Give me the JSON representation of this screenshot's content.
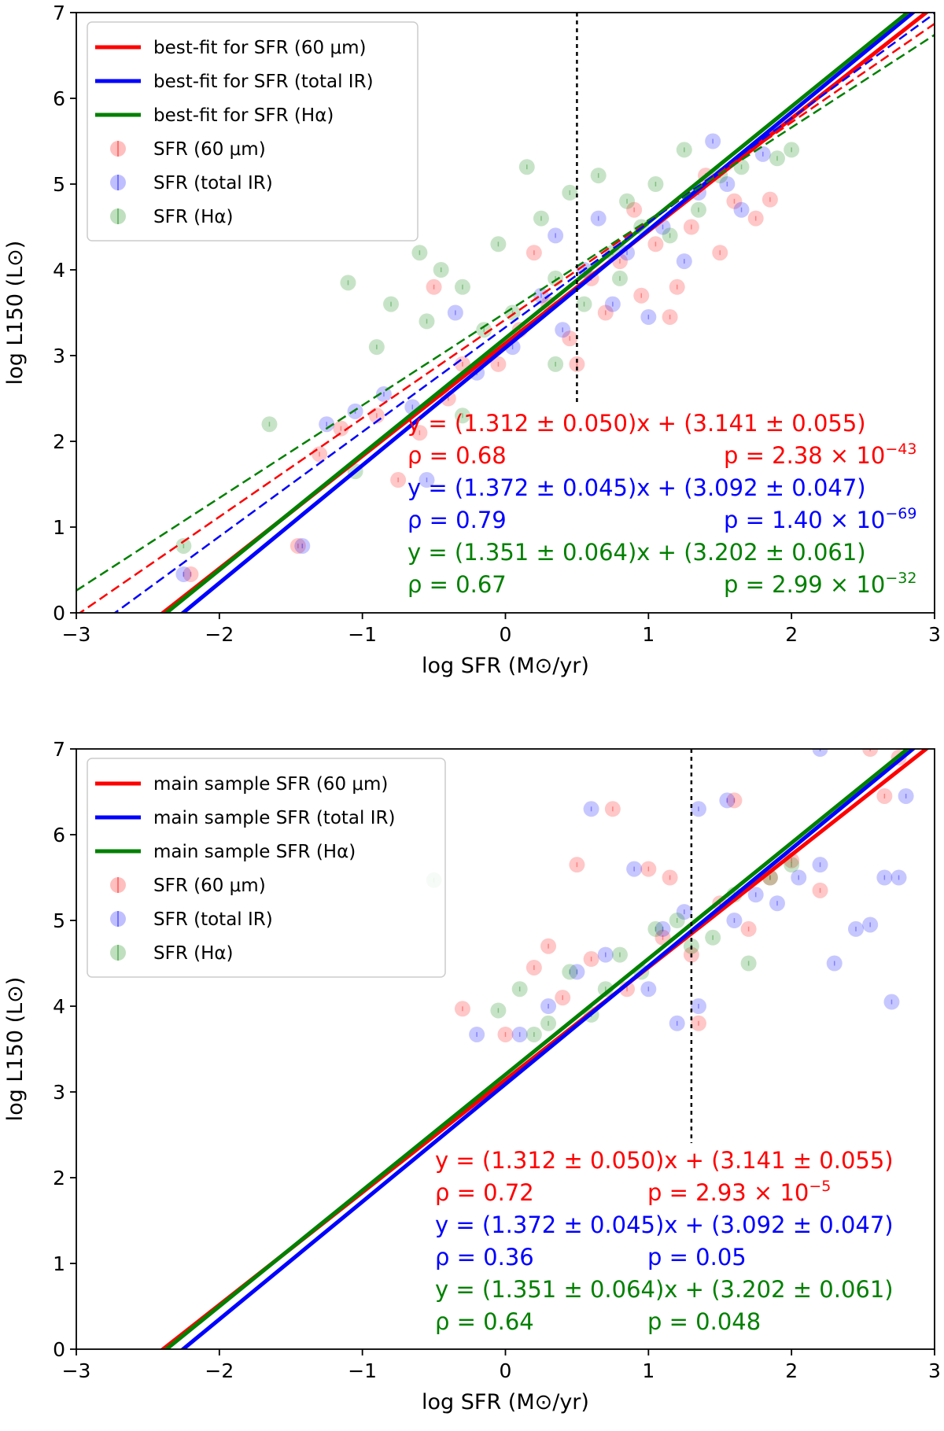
{
  "chart_data": [
    {
      "type": "scatter",
      "xlabel": "log SFR (M⊙/yr)",
      "ylabel": "log L150 (L⊙)",
      "xlim": [
        -3,
        3
      ],
      "ylim": [
        0,
        7
      ],
      "xticks": [
        "−3",
        "−2",
        "−1",
        "0",
        "1",
        "2",
        "3"
      ],
      "yticks": [
        "0",
        "1",
        "2",
        "3",
        "4",
        "5",
        "6",
        "7"
      ],
      "grid": false,
      "legend_placement": "top-left",
      "colors": {
        "sfr60": "#ff0000",
        "sfrtir": "#0000ff",
        "sfrha": "#008000"
      },
      "vline_x": 0.5,
      "legend": [
        {
          "kind": "line",
          "label": "best-fit for SFR (60 μm)",
          "color": "#ff0000"
        },
        {
          "kind": "line",
          "label": "best-fit for SFR (total IR)",
          "color": "#0000ff"
        },
        {
          "kind": "line",
          "label": "best-fit for SFR (Hα)",
          "color": "#008000"
        },
        {
          "kind": "marker",
          "label": "SFR (60 μm)",
          "color": "#ff0000"
        },
        {
          "kind": "marker",
          "label": "SFR (total IR)",
          "color": "#0000ff"
        },
        {
          "kind": "marker",
          "label": "SFR (Hα)",
          "color": "#008000"
        }
      ],
      "fits": [
        {
          "color": "#ff0000",
          "slope": 1.312,
          "intercept": 3.141,
          "style": "solid"
        },
        {
          "color": "#0000ff",
          "slope": 1.372,
          "intercept": 3.092,
          "style": "solid"
        },
        {
          "color": "#008000",
          "slope": 1.351,
          "intercept": 3.202,
          "style": "solid"
        },
        {
          "color": "#ff0000",
          "slope": 1.15,
          "intercept": 3.42,
          "style": "dashed"
        },
        {
          "color": "#0000ff",
          "slope": 1.22,
          "intercept": 3.33,
          "style": "dashed"
        },
        {
          "color": "#008000",
          "slope": 1.08,
          "intercept": 3.5,
          "style": "dashed"
        }
      ],
      "annotations": [
        {
          "eq": "y = (1.312 ± 0.050)x + (3.141 ± 0.055)",
          "rho": "ρ = 0.68",
          "p": "p = 2.38 × 10",
          "pexp": "−43",
          "color": "#ff0000"
        },
        {
          "eq": "y = (1.372 ± 0.045)x + (3.092 ± 0.047)",
          "rho": "ρ = 0.79",
          "p": "p = 1.40 × 10",
          "pexp": "−69",
          "color": "#0000ff"
        },
        {
          "eq": "y = (1.351 ± 0.064)x + (3.202 ± 0.061)",
          "rho": "ρ = 0.67",
          "p": "p = 2.99 × 10",
          "pexp": "−32",
          "color": "#008000"
        }
      ],
      "series": [
        {
          "name": "SFR (60 μm)",
          "color": "#ff0000",
          "points": [
            [
              -2.2,
              0.45
            ],
            [
              -1.45,
              0.78
            ],
            [
              -1.3,
              1.85
            ],
            [
              -1.15,
              2.15
            ],
            [
              -0.9,
              2.3
            ],
            [
              -0.75,
              1.55
            ],
            [
              -0.6,
              2.1
            ],
            [
              -0.4,
              2.5
            ],
            [
              -0.3,
              2.9
            ],
            [
              -0.05,
              2.9
            ],
            [
              0.1,
              3.3
            ],
            [
              0.3,
              3.6
            ],
            [
              0.45,
              3.2
            ],
            [
              0.5,
              2.9
            ],
            [
              0.6,
              3.9
            ],
            [
              0.7,
              3.5
            ],
            [
              0.8,
              4.1
            ],
            [
              0.95,
              3.7
            ],
            [
              1.05,
              4.3
            ],
            [
              1.2,
              3.8
            ],
            [
              1.3,
              4.5
            ],
            [
              1.5,
              4.2
            ],
            [
              1.6,
              4.8
            ],
            [
              1.75,
              4.6
            ],
            [
              1.85,
              4.82
            ],
            [
              -0.5,
              3.8
            ],
            [
              0.2,
              4.2
            ],
            [
              0.9,
              4.7
            ],
            [
              1.4,
              5.1
            ],
            [
              1.15,
              3.45
            ]
          ]
        },
        {
          "name": "SFR (total IR)",
          "color": "#0000ff",
          "points": [
            [
              -2.25,
              0.45
            ],
            [
              -1.42,
              0.78
            ],
            [
              -1.25,
              2.2
            ],
            [
              -1.05,
              2.35
            ],
            [
              -0.85,
              2.55
            ],
            [
              -0.65,
              2.4
            ],
            [
              -0.55,
              1.55
            ],
            [
              -0.2,
              2.8
            ],
            [
              0.05,
              3.1
            ],
            [
              0.25,
              3.7
            ],
            [
              0.4,
              3.3
            ],
            [
              0.55,
              4.0
            ],
            [
              0.75,
              3.6
            ],
            [
              0.85,
              4.2
            ],
            [
              1.0,
              3.45
            ],
            [
              1.1,
              4.5
            ],
            [
              1.25,
              4.1
            ],
            [
              1.35,
              4.9
            ],
            [
              1.45,
              5.5
            ],
            [
              1.55,
              5.0
            ],
            [
              1.8,
              5.35
            ],
            [
              0.35,
              4.4
            ],
            [
              0.65,
              4.6
            ],
            [
              -0.35,
              3.5
            ],
            [
              1.65,
              4.7
            ]
          ]
        },
        {
          "name": "SFR (Hα)",
          "color": "#008000",
          "points": [
            [
              -1.65,
              2.2
            ],
            [
              -1.05,
              1.65
            ],
            [
              -1.1,
              3.85
            ],
            [
              -0.9,
              3.1
            ],
            [
              -0.8,
              3.6
            ],
            [
              -0.6,
              4.2
            ],
            [
              -0.55,
              3.4
            ],
            [
              -0.45,
              4.0
            ],
            [
              -0.3,
              3.8
            ],
            [
              -0.15,
              3.3
            ],
            [
              -0.05,
              4.3
            ],
            [
              0.05,
              3.5
            ],
            [
              0.15,
              5.2
            ],
            [
              0.25,
              4.6
            ],
            [
              0.35,
              3.9
            ],
            [
              0.45,
              4.9
            ],
            [
              0.55,
              3.6
            ],
            [
              0.65,
              5.1
            ],
            [
              0.75,
              4.2
            ],
            [
              0.85,
              4.8
            ],
            [
              0.95,
              4.5
            ],
            [
              1.05,
              5.0
            ],
            [
              1.15,
              4.4
            ],
            [
              1.25,
              5.4
            ],
            [
              1.35,
              4.7
            ],
            [
              1.5,
              5.1
            ],
            [
              1.65,
              5.2
            ],
            [
              1.9,
              5.3
            ],
            [
              2.0,
              5.4
            ],
            [
              -0.3,
              2.3
            ],
            [
              0.35,
              2.9
            ],
            [
              0.8,
              3.9
            ],
            [
              -2.25,
              0.78
            ]
          ]
        }
      ]
    },
    {
      "type": "scatter",
      "xlabel": "log SFR (M⊙/yr)",
      "ylabel": "log L150 (L⊙)",
      "xlim": [
        -3,
        3
      ],
      "ylim": [
        0,
        7
      ],
      "xticks": [
        "−3",
        "−2",
        "−1",
        "0",
        "1",
        "2",
        "3"
      ],
      "yticks": [
        "0",
        "1",
        "2",
        "3",
        "4",
        "5",
        "6",
        "7"
      ],
      "grid": false,
      "legend_placement": "top-left",
      "colors": {
        "sfr60": "#ff0000",
        "sfrtir": "#0000ff",
        "sfrha": "#008000"
      },
      "vline_x": 1.3,
      "legend": [
        {
          "kind": "line",
          "label": "main sample SFR (60 μm)",
          "color": "#ff0000"
        },
        {
          "kind": "line",
          "label": "main sample SFR (total IR)",
          "color": "#0000ff"
        },
        {
          "kind": "line",
          "label": "main sample SFR (Hα)",
          "color": "#008000"
        },
        {
          "kind": "marker",
          "label": "SFR (60 μm)",
          "color": "#ff0000"
        },
        {
          "kind": "marker",
          "label": "SFR (total IR)",
          "color": "#0000ff"
        },
        {
          "kind": "marker",
          "label": "SFR (Hα)",
          "color": "#008000"
        }
      ],
      "fits": [
        {
          "color": "#ff0000",
          "slope": 1.312,
          "intercept": 3.141,
          "style": "solid"
        },
        {
          "color": "#0000ff",
          "slope": 1.372,
          "intercept": 3.092,
          "style": "solid"
        },
        {
          "color": "#008000",
          "slope": 1.351,
          "intercept": 3.202,
          "style": "solid"
        }
      ],
      "annotations": [
        {
          "eq": "y = (1.312 ± 0.050)x + (3.141 ± 0.055)",
          "rho": "ρ = 0.72",
          "p": "p = 2.93 × 10",
          "pexp": "−5",
          "color": "#ff0000"
        },
        {
          "eq": "y = (1.372 ± 0.045)x + (3.092 ± 0.047)",
          "rho": "ρ = 0.36",
          "p": "p = 0.05",
          "pexp": "",
          "color": "#0000ff"
        },
        {
          "eq": "y = (1.351 ± 0.064)x + (3.202 ± 0.061)",
          "rho": "ρ = 0.64",
          "p": "p = 0.048",
          "pexp": "",
          "color": "#008000"
        }
      ],
      "series": [
        {
          "name": "SFR (60 μm)",
          "color": "#ff0000",
          "points": [
            [
              -0.3,
              3.97
            ],
            [
              0.0,
              3.67
            ],
            [
              0.2,
              4.45
            ],
            [
              0.4,
              4.1
            ],
            [
              0.5,
              5.65
            ],
            [
              0.6,
              4.55
            ],
            [
              0.75,
              6.3
            ],
            [
              0.85,
              4.2
            ],
            [
              1.0,
              5.6
            ],
            [
              1.1,
              4.8
            ],
            [
              1.15,
              5.5
            ],
            [
              1.3,
              4.6
            ],
            [
              1.35,
              3.8
            ],
            [
              1.5,
              5.2
            ],
            [
              1.6,
              6.4
            ],
            [
              1.7,
              4.9
            ],
            [
              1.85,
              5.5
            ],
            [
              2.0,
              5.7
            ],
            [
              2.2,
              5.35
            ],
            [
              2.55,
              7.0
            ],
            [
              2.65,
              6.45
            ],
            [
              2.75,
              6.9
            ],
            [
              0.3,
              4.7
            ]
          ]
        },
        {
          "name": "SFR (total IR)",
          "color": "#0000ff",
          "points": [
            [
              -0.2,
              3.67
            ],
            [
              0.1,
              3.67
            ],
            [
              0.3,
              4.0
            ],
            [
              0.5,
              4.4
            ],
            [
              0.6,
              6.3
            ],
            [
              0.7,
              4.6
            ],
            [
              0.9,
              5.6
            ],
            [
              1.0,
              4.2
            ],
            [
              1.1,
              4.9
            ],
            [
              1.2,
              3.8
            ],
            [
              1.25,
              5.1
            ],
            [
              1.35,
              4.0
            ],
            [
              1.55,
              6.4
            ],
            [
              1.6,
              5.0
            ],
            [
              1.75,
              5.3
            ],
            [
              1.9,
              5.2
            ],
            [
              2.05,
              5.5
            ],
            [
              2.2,
              5.65
            ],
            [
              2.3,
              4.5
            ],
            [
              2.45,
              4.9
            ],
            [
              2.55,
              4.95
            ],
            [
              2.65,
              5.5
            ],
            [
              2.7,
              4.05
            ],
            [
              2.75,
              5.5
            ],
            [
              2.8,
              6.45
            ],
            [
              2.2,
              7.0
            ],
            [
              1.35,
              6.3
            ]
          ]
        },
        {
          "name": "SFR (Hα)",
          "color": "#008000",
          "points": [
            [
              -0.5,
              5.47
            ],
            [
              -0.05,
              3.95
            ],
            [
              0.1,
              4.2
            ],
            [
              0.3,
              3.8
            ],
            [
              0.45,
              4.4
            ],
            [
              0.6,
              3.9
            ],
            [
              0.8,
              4.6
            ],
            [
              0.95,
              4.4
            ],
            [
              1.05,
              4.9
            ],
            [
              1.2,
              5.0
            ],
            [
              1.3,
              4.7
            ],
            [
              1.45,
              4.8
            ],
            [
              1.6,
              5.3
            ],
            [
              1.7,
              4.5
            ],
            [
              1.85,
              5.5
            ],
            [
              2.0,
              5.65
            ],
            [
              0.2,
              3.67
            ],
            [
              0.7,
              4.2
            ]
          ]
        }
      ]
    }
  ]
}
